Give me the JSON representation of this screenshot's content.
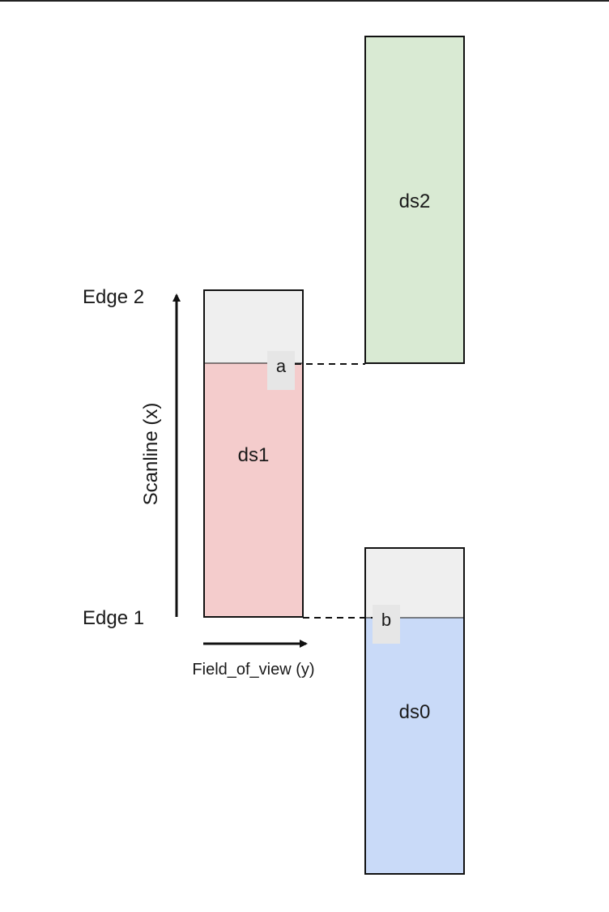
{
  "labels": {
    "edge2": "Edge 2",
    "edge1": "Edge 1",
    "scanline_axis": "Scanline (x)",
    "fov_axis": "Field_of_view (y)",
    "point_a": "a",
    "point_b": "b"
  },
  "datasets": [
    {
      "id": "ds2",
      "label": "ds2",
      "fill": "#d9ead3"
    },
    {
      "id": "ds1",
      "label": "ds1",
      "fill": "#f4cccc"
    },
    {
      "id": "ds0",
      "label": "ds0",
      "fill": "#c9daf8"
    }
  ],
  "colors": {
    "overlap_fill": "#efefef",
    "stroke": "#111111",
    "marker_box": "#e6e6e6"
  }
}
